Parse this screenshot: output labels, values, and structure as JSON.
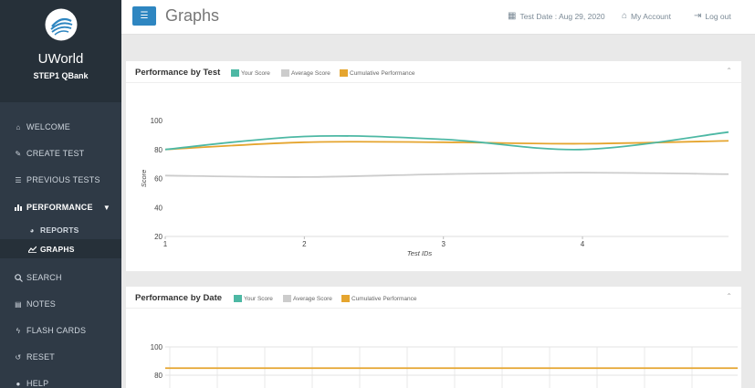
{
  "brand": {
    "name": "UWorld",
    "subtitle": "STEP1 QBank"
  },
  "sidebar": {
    "items": [
      {
        "label": "WELCOME",
        "icon": "home-icon"
      },
      {
        "label": "CREATE TEST",
        "icon": "edit-icon"
      },
      {
        "label": "PREVIOUS TESTS",
        "icon": "list-icon"
      },
      {
        "label": "PERFORMANCE",
        "icon": "bar-chart-icon"
      },
      {
        "label": "REPORTS",
        "icon": "pie-chart-icon"
      },
      {
        "label": "GRAPHS",
        "icon": "line-chart-icon"
      },
      {
        "label": "SEARCH",
        "icon": "search-icon"
      },
      {
        "label": "NOTES",
        "icon": "notes-icon"
      },
      {
        "label": "FLASH CARDS",
        "icon": "bolt-icon"
      },
      {
        "label": "RESET",
        "icon": "reset-icon"
      },
      {
        "label": "HELP",
        "icon": "help-icon"
      }
    ]
  },
  "header": {
    "title": "Graphs",
    "test_date": "Test Date : Aug 29, 2020",
    "account": "My Account",
    "logout": "Log out"
  },
  "legend": {
    "your_score": "Your Score",
    "average_score": "Average Score",
    "cumulative": "Cumulative Performance"
  },
  "colors": {
    "your_score": "#4db8a4",
    "average_score": "#cccccc",
    "cumulative": "#e5a52f",
    "accent": "#2e86c1"
  },
  "chart_data": [
    {
      "type": "line",
      "title": "Performance by Test",
      "xlabel": "Test IDs",
      "ylabel": "Score",
      "x_ticks": [
        1,
        2,
        3,
        4
      ],
      "y_ticks": [
        20,
        40,
        60,
        80,
        100
      ],
      "ylim": [
        20,
        100
      ],
      "xlim": [
        1,
        5.05
      ],
      "series": [
        {
          "name": "Your Score",
          "x": [
            1,
            2,
            3,
            4,
            5.05
          ],
          "values": [
            80,
            89,
            87,
            80,
            92
          ]
        },
        {
          "name": "Average Score",
          "x": [
            1,
            2,
            3,
            4,
            5.05
          ],
          "values": [
            62,
            61,
            63,
            64,
            63
          ]
        },
        {
          "name": "Cumulative Performance",
          "x": [
            1,
            2,
            3,
            4,
            5.05
          ],
          "values": [
            80,
            85,
            85,
            84,
            86
          ]
        }
      ]
    },
    {
      "type": "line",
      "title": "Performance by Date",
      "y_ticks": [
        80,
        100
      ],
      "series": [
        {
          "name": "Cumulative Performance",
          "values": [
            85,
            85
          ]
        }
      ]
    }
  ]
}
